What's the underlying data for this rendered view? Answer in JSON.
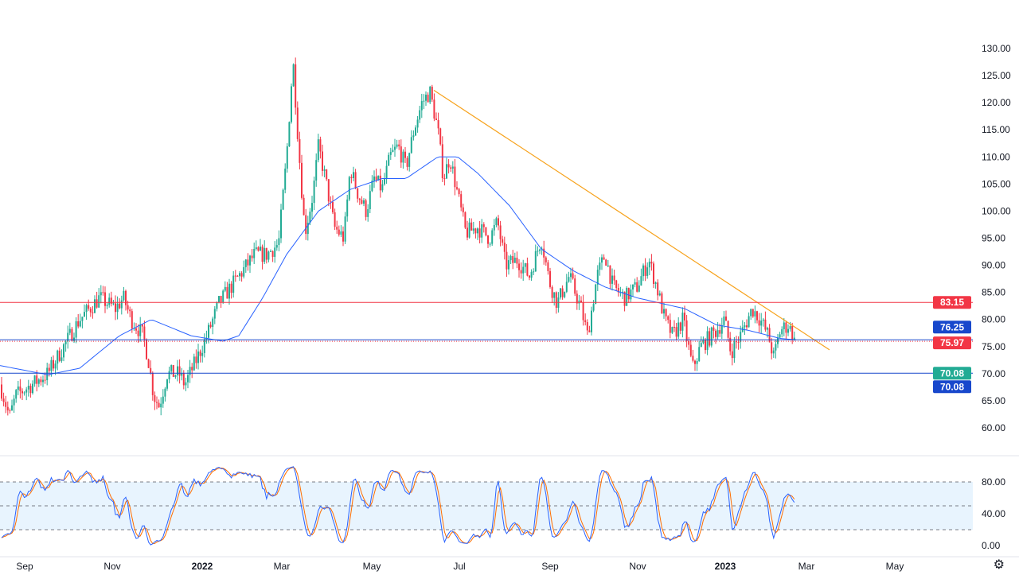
{
  "chart_data": {
    "type": "candlestick",
    "title": "",
    "price_axis": {
      "ticks": [
        "130.00",
        "125.00",
        "120.00",
        "115.00",
        "110.00",
        "105.00",
        "100.00",
        "95.00",
        "90.00",
        "85.00",
        "80.00",
        "75.00",
        "70.00",
        "65.00",
        "60.00"
      ],
      "ylim": [
        60,
        130
      ]
    },
    "time_axis": {
      "ticks": [
        "Sep",
        "Nov",
        "2022",
        "Mar",
        "May",
        "Jul",
        "Sep",
        "Nov",
        "2023",
        "Mar",
        "May"
      ]
    },
    "price_path_anchors": [
      [
        0,
        68
      ],
      [
        12,
        62
      ],
      [
        20,
        66
      ],
      [
        40,
        68
      ],
      [
        60,
        70
      ],
      [
        80,
        75
      ],
      [
        100,
        80
      ],
      [
        125,
        84
      ],
      [
        135,
        83
      ],
      [
        145,
        82
      ],
      [
        155,
        84
      ],
      [
        165,
        80
      ],
      [
        180,
        77
      ],
      [
        187,
        72
      ],
      [
        193,
        66
      ],
      [
        200,
        64
      ],
      [
        210,
        70
      ],
      [
        225,
        70
      ],
      [
        232,
        68
      ],
      [
        245,
        72
      ],
      [
        260,
        77
      ],
      [
        275,
        83
      ],
      [
        290,
        86
      ],
      [
        305,
        89
      ],
      [
        320,
        92
      ],
      [
        335,
        92
      ],
      [
        350,
        94
      ],
      [
        360,
        110
      ],
      [
        368,
        128
      ],
      [
        375,
        112
      ],
      [
        383,
        96
      ],
      [
        393,
        103
      ],
      [
        400,
        112
      ],
      [
        410,
        105
      ],
      [
        420,
        97
      ],
      [
        432,
        95
      ],
      [
        440,
        108
      ],
      [
        450,
        103
      ],
      [
        460,
        100
      ],
      [
        470,
        106
      ],
      [
        480,
        104
      ],
      [
        490,
        110
      ],
      [
        500,
        112
      ],
      [
        510,
        108
      ],
      [
        520,
        115
      ],
      [
        530,
        120
      ],
      [
        540,
        122
      ],
      [
        550,
        115
      ],
      [
        557,
        106
      ],
      [
        565,
        110
      ],
      [
        575,
        103
      ],
      [
        585,
        96
      ],
      [
        600,
        97
      ],
      [
        615,
        95
      ],
      [
        625,
        98
      ],
      [
        635,
        90
      ],
      [
        650,
        91
      ],
      [
        665,
        88
      ],
      [
        680,
        95
      ],
      [
        690,
        87
      ],
      [
        700,
        83
      ],
      [
        715,
        88
      ],
      [
        730,
        82
      ],
      [
        738,
        77
      ],
      [
        750,
        88
      ],
      [
        760,
        92
      ],
      [
        770,
        86
      ],
      [
        785,
        84
      ],
      [
        800,
        86
      ],
      [
        815,
        91
      ],
      [
        825,
        86
      ],
      [
        835,
        80
      ],
      [
        845,
        77
      ],
      [
        858,
        80
      ],
      [
        870,
        71
      ],
      [
        880,
        75
      ],
      [
        900,
        78
      ],
      [
        910,
        80
      ],
      [
        918,
        74
      ],
      [
        930,
        77
      ],
      [
        945,
        82
      ],
      [
        955,
        80
      ],
      [
        965,
        77
      ],
      [
        972,
        73
      ],
      [
        980,
        78
      ],
      [
        990,
        79
      ],
      [
        1000,
        75.97
      ]
    ],
    "moving_average_anchors": [
      [
        0,
        71.5
      ],
      [
        60,
        69.8
      ],
      [
        100,
        71
      ],
      [
        150,
        77
      ],
      [
        190,
        80
      ],
      [
        240,
        77
      ],
      [
        280,
        76
      ],
      [
        300,
        77
      ],
      [
        330,
        84
      ],
      [
        360,
        92
      ],
      [
        400,
        100
      ],
      [
        440,
        104
      ],
      [
        480,
        106
      ],
      [
        510,
        106
      ],
      [
        550,
        110
      ],
      [
        575,
        110
      ],
      [
        600,
        107
      ],
      [
        640,
        101
      ],
      [
        680,
        93
      ],
      [
        720,
        89
      ],
      [
        760,
        86
      ],
      [
        800,
        84
      ],
      [
        860,
        82
      ],
      [
        900,
        79
      ],
      [
        940,
        78
      ],
      [
        980,
        76.5
      ],
      [
        1000,
        76.25
      ]
    ],
    "trendline": {
      "from_price": 122.3,
      "to_price": 74.4,
      "color": "#f7a21b"
    },
    "levels": [
      {
        "value": 83.15,
        "label": "83.15",
        "color": "#f23645",
        "style": "solid"
      },
      {
        "value": 70.08,
        "label": "70.08",
        "color": "#1848cc",
        "style": "solid"
      },
      {
        "value": 76.25,
        "label": "76.25",
        "color": "#1848cc",
        "style": "solid"
      },
      {
        "value": 75.97,
        "label": "75.97",
        "color": "#f23645",
        "style": "dotted"
      }
    ],
    "extra_labels": [
      {
        "label": "70.08",
        "color": "#22ab94"
      }
    ],
    "colors": {
      "up": "#22ab94",
      "down": "#f23645",
      "ma": "#2962ff"
    },
    "stochastic": {
      "ticks": [
        "80.00",
        "40.00",
        "0.00"
      ],
      "upper": 80,
      "lower": 20,
      "mid": 50,
      "k_color": "#2962ff",
      "d_color": "#ff6d00"
    }
  }
}
